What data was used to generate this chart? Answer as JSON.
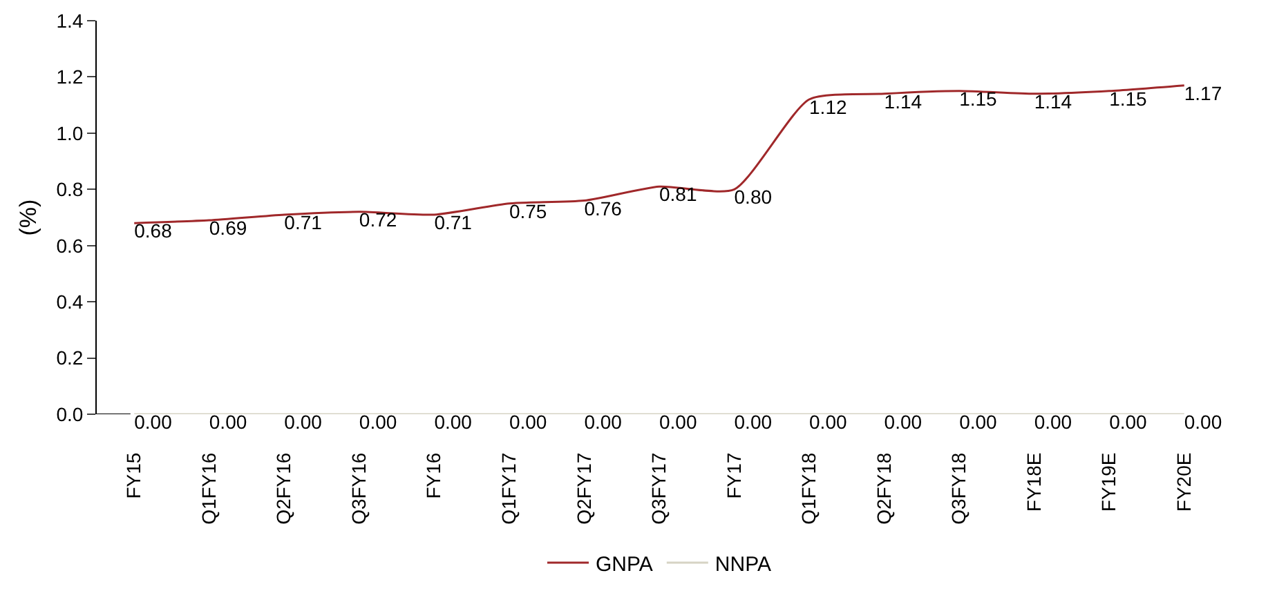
{
  "chart_data": {
    "type": "line",
    "ylabel": "(%)",
    "categories": [
      "FY15",
      "Q1FY16",
      "Q2FY16",
      "Q3FY16",
      "FY16",
      "Q1FY17",
      "Q2FY17",
      "Q3FY17",
      "FY17",
      "Q1FY18",
      "Q2FY18",
      "Q3FY18",
      "FY18E",
      "FY19E",
      "FY20E"
    ],
    "series": [
      {
        "name": "GNPA",
        "color": "#a0282a",
        "values": [
          0.68,
          0.69,
          0.71,
          0.72,
          0.71,
          0.75,
          0.76,
          0.81,
          0.8,
          1.12,
          1.14,
          1.15,
          1.14,
          1.15,
          1.17
        ],
        "value_labels": [
          "0.68",
          "0.69",
          "0.71",
          "0.72",
          "0.71",
          "0.75",
          "0.76",
          "0.81",
          "0.80",
          "1.12",
          "1.14",
          "1.15",
          "1.14",
          "1.15",
          "1.17"
        ]
      },
      {
        "name": "NNPA",
        "color": "#d6d3c4",
        "values": [
          0,
          0,
          0,
          0,
          0,
          0,
          0,
          0,
          0,
          0,
          0,
          0,
          0,
          0,
          0
        ],
        "value_labels": [
          "0.00",
          "0.00",
          "0.00",
          "0.00",
          "0.00",
          "0.00",
          "0.00",
          "0.00",
          "0.00",
          "0.00",
          "0.00",
          "0.00",
          "0.00",
          "0.00",
          "0.00"
        ]
      }
    ],
    "ylim": [
      0,
      1.4
    ],
    "yticks": [
      {
        "value": 0,
        "label": "0.0"
      },
      {
        "value": 0.2,
        "label": "0.2"
      },
      {
        "value": 0.4,
        "label": "0.4"
      },
      {
        "value": 0.6,
        "label": "0.6"
      },
      {
        "value": 0.8,
        "label": "0.8"
      },
      {
        "value": 1,
        "label": "1.0"
      },
      {
        "value": 1.2,
        "label": "1.2"
      },
      {
        "value": 1.4,
        "label": "1.4"
      }
    ],
    "grid": false,
    "legend": "bottom",
    "marker": "none",
    "line_style": "solid"
  }
}
